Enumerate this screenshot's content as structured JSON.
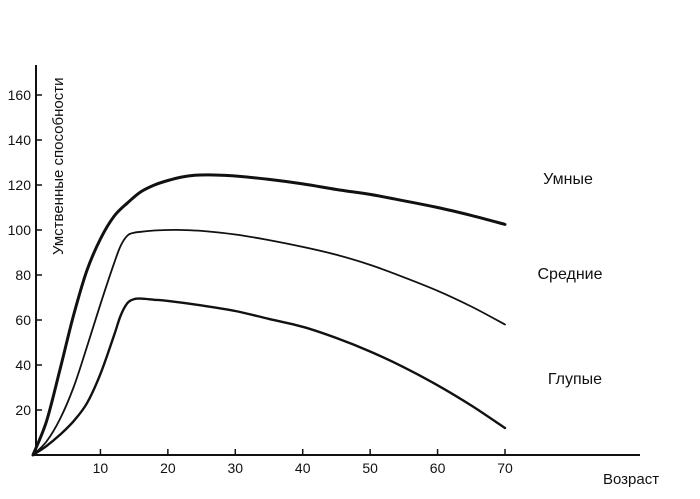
{
  "chart_data": {
    "type": "line",
    "xlabel": "Возраст",
    "ylabel": "Умственные способности",
    "xlim": [
      0,
      78
    ],
    "ylim": [
      0,
      170
    ],
    "xticks": [
      10,
      20,
      30,
      40,
      50,
      60,
      70
    ],
    "yticks": [
      20,
      40,
      60,
      80,
      100,
      120,
      140,
      160
    ],
    "grid": false,
    "legend": "none",
    "series": [
      {
        "name": "Умные",
        "color": "#111111",
        "x": [
          0,
          2,
          4,
          6,
          8,
          10,
          12,
          14,
          16,
          18,
          20,
          22,
          24,
          26,
          28,
          30,
          35,
          40,
          45,
          50,
          55,
          60,
          65,
          70
        ],
        "y": [
          0,
          15,
          38,
          62,
          82,
          96,
          106,
          112,
          117,
          120,
          122,
          123.5,
          124.3,
          124.5,
          124.3,
          124,
          122.5,
          120.5,
          118,
          115.8,
          113,
          110,
          106.5,
          102.5
        ]
      },
      {
        "name": "Средние",
        "color": "#111111",
        "x": [
          0,
          2,
          4,
          6,
          8,
          10,
          12,
          13,
          14,
          15,
          16,
          18,
          20,
          22,
          25,
          30,
          35,
          40,
          45,
          50,
          55,
          60,
          65,
          70
        ],
        "y": [
          0,
          6,
          16,
          30,
          48,
          67,
          85,
          93,
          97.5,
          98.8,
          99.2,
          99.8,
          100,
          100,
          99.6,
          98,
          95.5,
          92.5,
          89,
          84.5,
          79,
          73,
          66,
          58
        ]
      },
      {
        "name": "Глупые",
        "color": "#111111",
        "x": [
          0,
          2,
          4,
          6,
          8,
          10,
          12,
          13,
          14,
          15,
          16,
          18,
          20,
          25,
          30,
          35,
          40,
          45,
          50,
          55,
          60,
          65,
          70
        ],
        "y": [
          0,
          4,
          9,
          15,
          23,
          36,
          53,
          62,
          67.5,
          69.3,
          69.5,
          69,
          68.5,
          66.5,
          64,
          60.5,
          57,
          52,
          46,
          39,
          31,
          22,
          12
        ]
      }
    ]
  }
}
